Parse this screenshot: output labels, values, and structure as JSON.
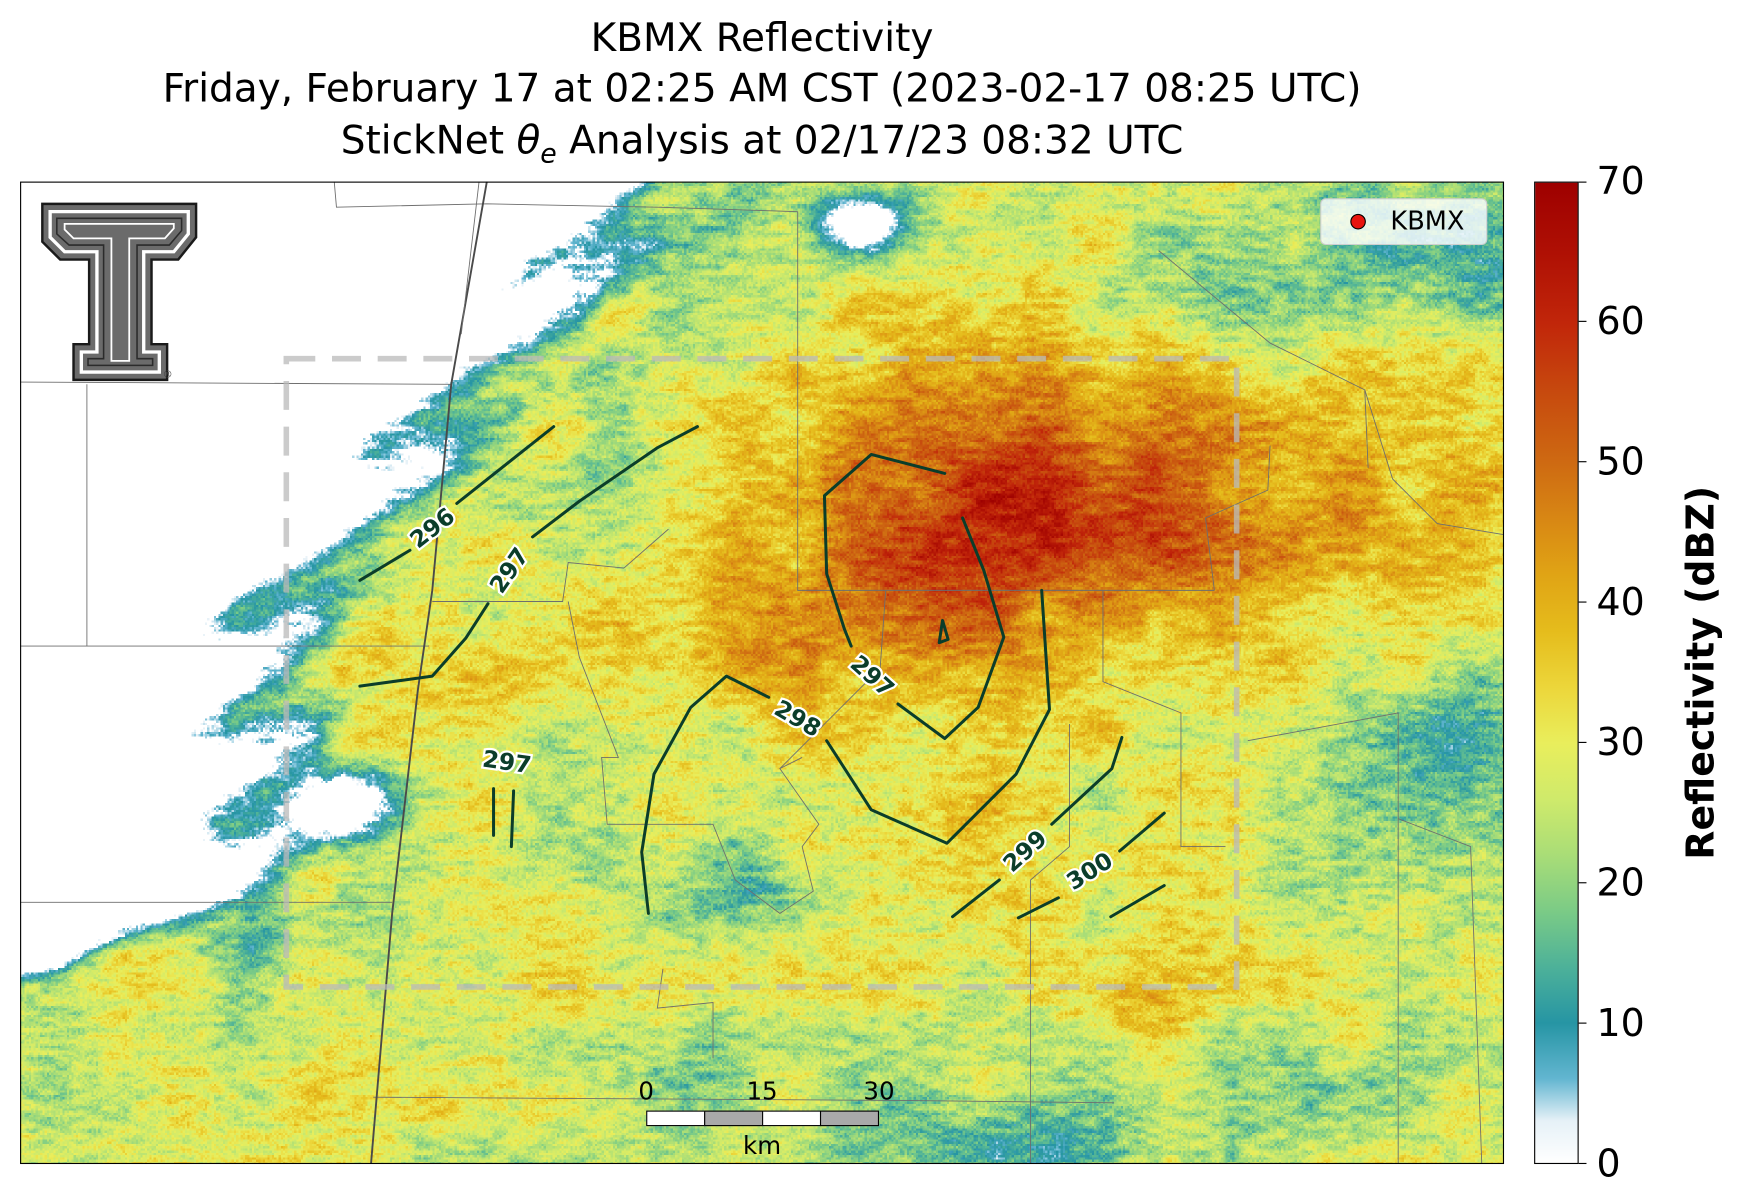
{
  "title": {
    "line1": "KBMX Reflectivity",
    "line2": "Friday, February 17 at 02:25 AM CST (2023-02-17 08:25 UTC)",
    "line3_prefix": "StickNet ",
    "line3_symbol": "θ",
    "line3_sub": "e",
    "line3_suffix": " Analysis at 02/17/23 08:32 UTC"
  },
  "logo": {
    "icon": "texas-tech-double-t-icon",
    "mark": "®"
  },
  "legend": {
    "label": "KBMX",
    "marker_color": "#e8130f"
  },
  "contours": [
    {
      "level": "296"
    },
    {
      "level": "297"
    },
    {
      "level": "297"
    },
    {
      "level": "297"
    },
    {
      "level": "298"
    },
    {
      "level": "299"
    },
    {
      "level": "300"
    }
  ],
  "scale_bar": {
    "ticks": [
      "0",
      "15",
      "30"
    ],
    "unit": "km"
  },
  "colorbar": {
    "label": "Reflectivity (dBZ)",
    "min": 0,
    "max": 70,
    "ticks": [
      "0",
      "10",
      "20",
      "30",
      "40",
      "50",
      "60",
      "70"
    ],
    "stops": [
      {
        "value": 0,
        "color": "#ffffff"
      },
      {
        "value": 3,
        "color": "#e6f1f7"
      },
      {
        "value": 6,
        "color": "#63b6d1"
      },
      {
        "value": 10,
        "color": "#2695a4"
      },
      {
        "value": 14,
        "color": "#4db199"
      },
      {
        "value": 18,
        "color": "#7bcb86"
      },
      {
        "value": 22,
        "color": "#a9dd77"
      },
      {
        "value": 26,
        "color": "#cfea6b"
      },
      {
        "value": 30,
        "color": "#e9ee5c"
      },
      {
        "value": 34,
        "color": "#ecd63a"
      },
      {
        "value": 38,
        "color": "#e5bc1c"
      },
      {
        "value": 42,
        "color": "#e0a415"
      },
      {
        "value": 46,
        "color": "#d88714"
      },
      {
        "value": 50,
        "color": "#ce6a12"
      },
      {
        "value": 55,
        "color": "#c74a0e"
      },
      {
        "value": 60,
        "color": "#c1260a"
      },
      {
        "value": 65,
        "color": "#af1004"
      },
      {
        "value": 70,
        "color": "#9e0000"
      }
    ]
  }
}
